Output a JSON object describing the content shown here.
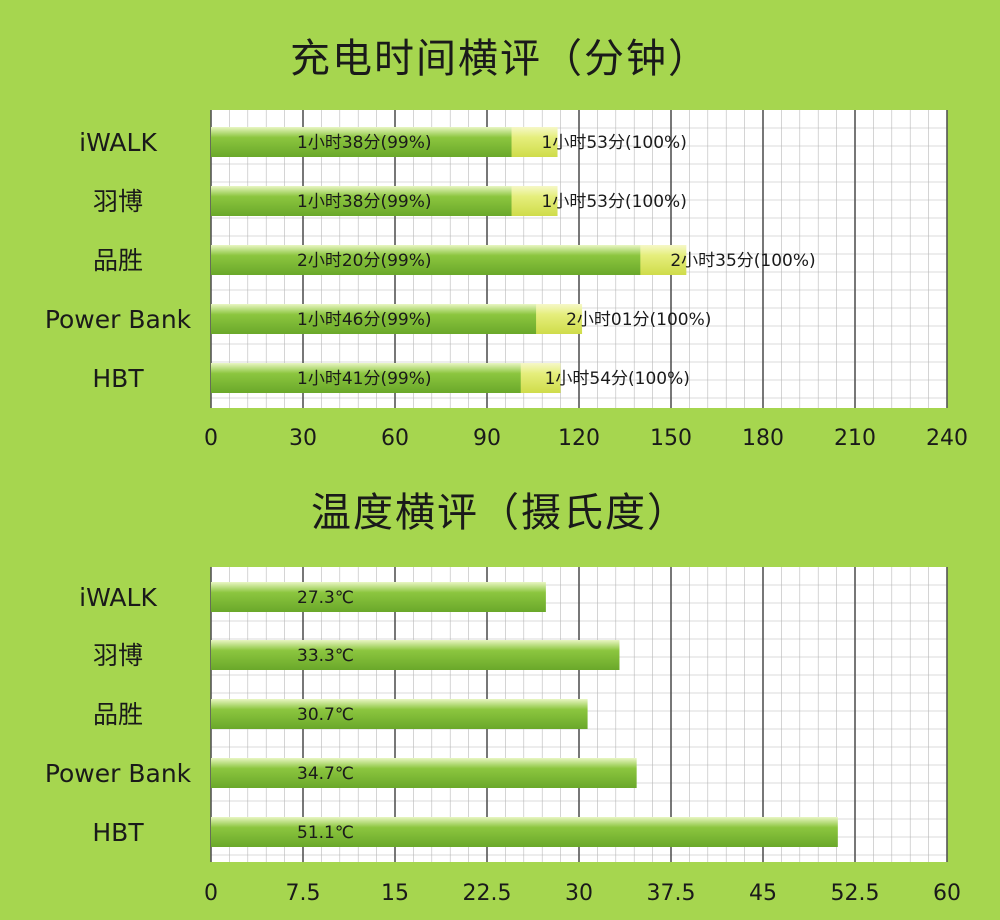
{
  "chart_data": [
    {
      "type": "bar",
      "title": "充电时间横评（分钟）",
      "categories": [
        "iWALK",
        "羽博",
        "品胜",
        "Power Bank",
        "HBT"
      ],
      "series": [
        {
          "values": [
            98,
            98,
            140,
            106,
            101
          ]
        },
        {
          "values": [
            113,
            113,
            155,
            121,
            114
          ]
        }
      ],
      "data_labels_99": [
        "1小时38分(99%)",
        "1小时38分(99%)",
        "2小时20分(99%)",
        "1小时46分(99%)",
        "1小时41分(99%)"
      ],
      "data_labels_100": [
        "1小时53分(100%)",
        "1小时53分(100%)",
        "2小时35分(100%)",
        "2小时01分(100%)",
        "1小时54分(100%)"
      ],
      "xlim": [
        0,
        240
      ],
      "ticks": [
        "0",
        "30",
        "60",
        "90",
        "120",
        "150",
        "180",
        "210",
        "240"
      ],
      "orientation": "horizontal",
      "grid": true
    },
    {
      "type": "bar",
      "title": "温度横评（摄氏度）",
      "categories": [
        "iWALK",
        "羽博",
        "品胜",
        "Power Bank",
        "HBT"
      ],
      "values": [
        27.3,
        33.3,
        30.7,
        34.7,
        51.1
      ],
      "data_labels": [
        "27.3℃",
        "33.3℃",
        "30.7℃",
        "34.7℃",
        "51.1℃"
      ],
      "xlim": [
        0,
        60
      ],
      "ticks": [
        "0",
        "7.5",
        "15",
        "22.5",
        "30",
        "37.5",
        "45",
        "52.5",
        "60"
      ],
      "orientation": "horizontal",
      "grid": true
    }
  ],
  "colors": {
    "background": "#a6d64f",
    "bar_green": "#8cc63f",
    "bar_yellow": "#e5ee7c",
    "grid_major": "#555555",
    "grid_minor": "#b8b8b8",
    "plot_bg": "#ffffff"
  }
}
